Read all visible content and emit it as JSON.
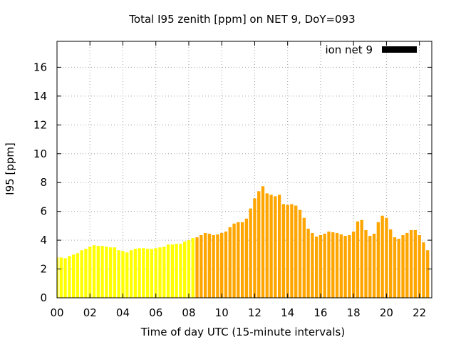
{
  "chart_data": {
    "type": "bar",
    "title": "Total I95 zenith [ppm] on NET 9, DoY=093",
    "xlabel": "Time of day UTC (15-minute intervals)",
    "ylabel": "I95 [ppm]",
    "xlim": [
      0,
      22.75
    ],
    "ylim": [
      0,
      17.8
    ],
    "grid": true,
    "legend_position": "top-right",
    "x_tick_labels": [
      "00",
      "02",
      "04",
      "06",
      "08",
      "10",
      "12",
      "14",
      "16",
      "18",
      "20",
      "22"
    ],
    "x_tick_values": [
      0,
      2,
      4,
      6,
      8,
      10,
      12,
      14,
      16,
      18,
      20,
      22
    ],
    "y_tick_labels": [
      "0",
      "2",
      "4",
      "6",
      "8",
      "10",
      "12",
      "14",
      "16"
    ],
    "y_tick_values": [
      0,
      2,
      4,
      6,
      8,
      10,
      12,
      14,
      16
    ],
    "bar_interval_hours": 0.25,
    "series": [
      {
        "name": "ion net 9",
        "legend_color": "#000000",
        "values_color_before_split": "#ffff00",
        "values_color_after_split": "#ffa500",
        "color_split_index": 34,
        "values": [
          2.8,
          2.8,
          2.75,
          2.9,
          3.0,
          3.1,
          3.3,
          3.4,
          3.55,
          3.65,
          3.6,
          3.6,
          3.55,
          3.5,
          3.5,
          3.3,
          3.25,
          3.15,
          3.3,
          3.4,
          3.45,
          3.45,
          3.4,
          3.4,
          3.45,
          3.5,
          3.55,
          3.7,
          3.7,
          3.75,
          3.75,
          3.9,
          4.0,
          4.15,
          4.2,
          4.35,
          4.5,
          4.45,
          4.35,
          4.4,
          4.5,
          4.6,
          4.9,
          5.15,
          5.25,
          5.25,
          5.5,
          6.2,
          6.9,
          7.4,
          7.75,
          7.25,
          7.15,
          7.05,
          7.15,
          6.5,
          6.45,
          6.5,
          6.4,
          6.1,
          5.55,
          4.8,
          4.5,
          4.25,
          4.35,
          4.45,
          4.6,
          4.55,
          4.5,
          4.4,
          4.3,
          4.35,
          4.6,
          5.3,
          5.4,
          4.7,
          4.3,
          4.45,
          5.25,
          5.7,
          5.55,
          4.75,
          4.2,
          4.1,
          4.35,
          4.5,
          4.7,
          4.7,
          4.35,
          3.85,
          3.3
        ]
      }
    ]
  }
}
